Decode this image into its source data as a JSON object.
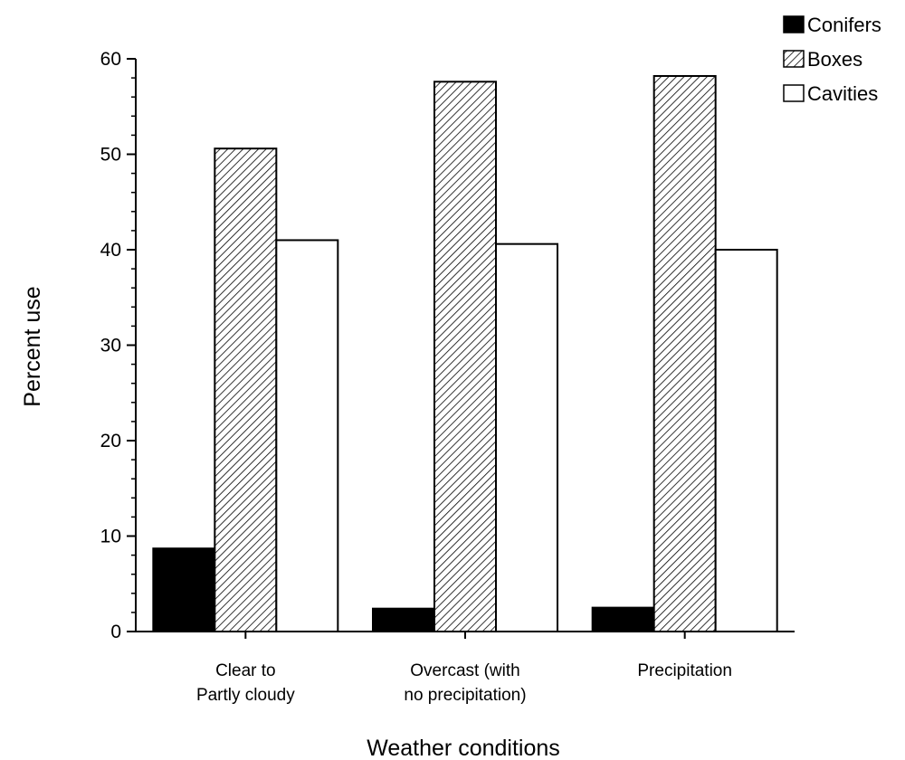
{
  "chart_data": {
    "type": "bar",
    "title": "",
    "xlabel": "Weather conditions",
    "ylabel": "Percent use",
    "categories": [
      [
        "Clear to",
        "Partly cloudy"
      ],
      [
        "Overcast (with",
        "no precipitation)"
      ],
      [
        "Precipitation"
      ]
    ],
    "series": [
      {
        "name": "Conifers",
        "values": [
          8.7,
          2.4,
          2.5
        ],
        "fill": "solid",
        "color": "#000000"
      },
      {
        "name": "Boxes",
        "values": [
          50.6,
          57.6,
          58.2
        ],
        "fill": "hatch",
        "color": "#000000"
      },
      {
        "name": "Cavities",
        "values": [
          41.0,
          40.6,
          40.0
        ],
        "fill": "empty",
        "color": "#000000"
      }
    ],
    "ylim": [
      0,
      60
    ],
    "yticks": [
      0,
      10,
      20,
      30,
      40,
      50,
      60
    ],
    "minor_tick_step": 2,
    "grid": false,
    "legend_position": "top-right"
  }
}
